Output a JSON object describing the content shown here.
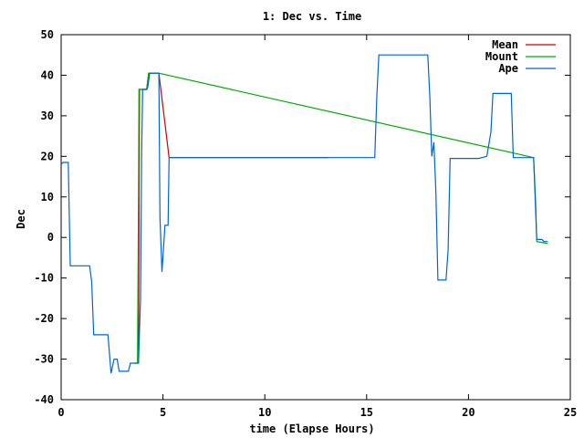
{
  "chart_data": {
    "type": "line",
    "title": "1: Dec vs. Time",
    "xlabel": "time (Elapse Hours)",
    "ylabel": "Dec",
    "xlim": [
      0,
      25
    ],
    "ylim": [
      -40,
      50
    ],
    "xticks": [
      0,
      5,
      10,
      15,
      20,
      25
    ],
    "yticks": [
      -40,
      -30,
      -20,
      -10,
      0,
      10,
      20,
      30,
      40,
      50
    ],
    "grid": false,
    "legend_position": "top-right",
    "series": [
      {
        "name": "Mean",
        "color": "#cc0000",
        "points": [
          [
            3.8,
            -31
          ],
          [
            3.85,
            36.5
          ],
          [
            4.2,
            36.5
          ],
          [
            4.3,
            40.5
          ],
          [
            4.8,
            40.5
          ],
          [
            5.3,
            19.7
          ],
          [
            13.1,
            19.7
          ]
        ]
      },
      {
        "name": "Mount",
        "color": "#00aa00",
        "points": [
          [
            3.6,
            -31
          ],
          [
            3.75,
            -31
          ],
          [
            3.8,
            10
          ],
          [
            3.82,
            36.5
          ],
          [
            4.2,
            36.5
          ],
          [
            4.3,
            40.5
          ],
          [
            4.8,
            40.5
          ],
          [
            23.2,
            19.7
          ],
          [
            23.3,
            8
          ],
          [
            23.35,
            -1
          ],
          [
            23.9,
            -1.5
          ]
        ]
      },
      {
        "name": "Ape",
        "color": "#0066cc",
        "points": [
          [
            0,
            18
          ],
          [
            0.1,
            18.5
          ],
          [
            0.35,
            18.5
          ],
          [
            0.45,
            -7
          ],
          [
            1.4,
            -7
          ],
          [
            1.5,
            -11
          ],
          [
            1.6,
            -24
          ],
          [
            2.3,
            -24
          ],
          [
            2.45,
            -33.5
          ],
          [
            2.6,
            -30
          ],
          [
            2.75,
            -30
          ],
          [
            2.85,
            -33
          ],
          [
            3.3,
            -33
          ],
          [
            3.4,
            -31
          ],
          [
            3.8,
            -31
          ],
          [
            3.9,
            -15
          ],
          [
            3.95,
            20
          ],
          [
            4.0,
            36.5
          ],
          [
            4.2,
            36.5
          ],
          [
            4.25,
            37
          ],
          [
            4.35,
            40.5
          ],
          [
            4.8,
            40.5
          ],
          [
            4.85,
            5
          ],
          [
            4.95,
            -8.5
          ],
          [
            5.1,
            3
          ],
          [
            5.25,
            3
          ],
          [
            5.3,
            19.7
          ],
          [
            15.4,
            19.7
          ],
          [
            15.5,
            35
          ],
          [
            15.6,
            45
          ],
          [
            18.0,
            45
          ],
          [
            18.1,
            35
          ],
          [
            18.2,
            20
          ],
          [
            18.3,
            23.5
          ],
          [
            18.4,
            11
          ],
          [
            18.5,
            -10.5
          ],
          [
            18.9,
            -10.5
          ],
          [
            19.0,
            -3
          ],
          [
            19.1,
            19.5
          ],
          [
            20.5,
            19.5
          ],
          [
            20.9,
            20
          ],
          [
            21.1,
            26
          ],
          [
            21.2,
            35.5
          ],
          [
            22.1,
            35.5
          ],
          [
            22.2,
            19.7
          ],
          [
            23.2,
            19.7
          ],
          [
            23.35,
            -0.5
          ],
          [
            23.6,
            -0.5
          ],
          [
            23.7,
            -1
          ],
          [
            23.9,
            -1
          ]
        ]
      }
    ]
  }
}
